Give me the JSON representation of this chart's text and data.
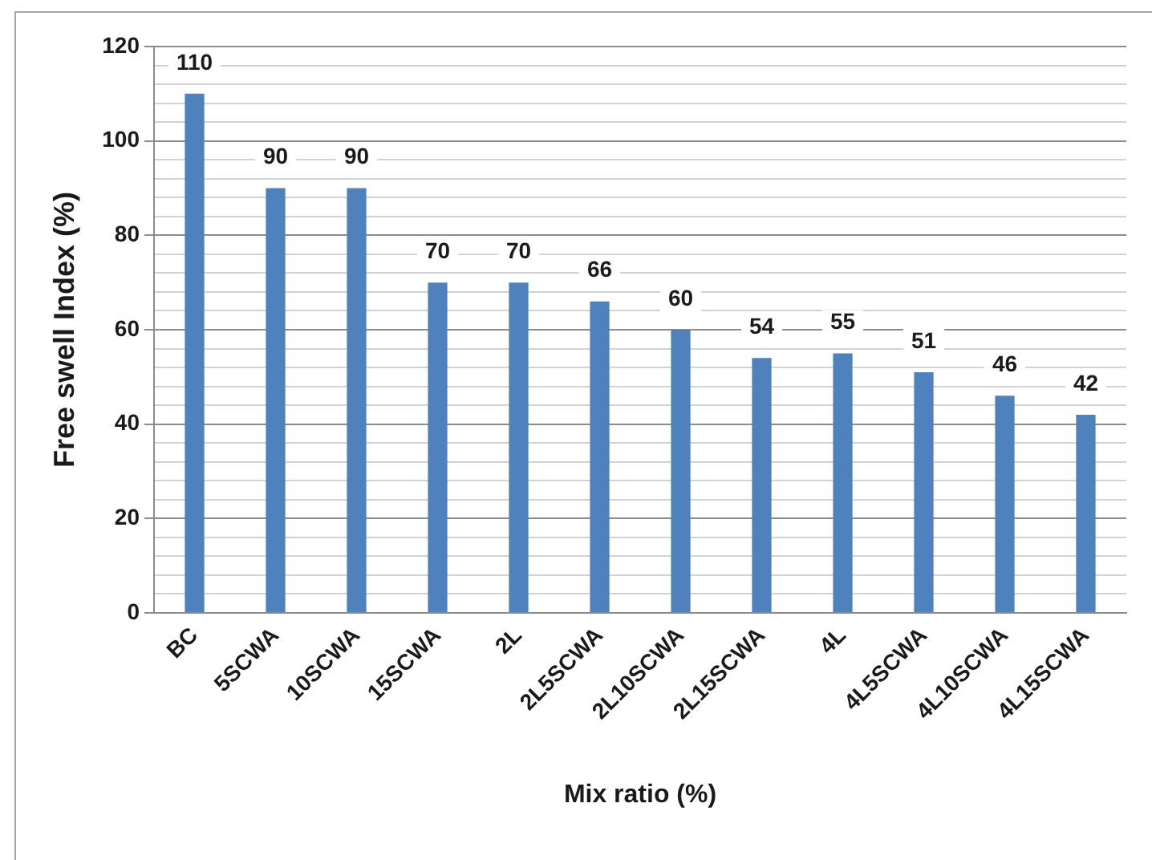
{
  "chart_data": {
    "type": "bar",
    "xlabel": "Mix ratio (%)",
    "ylabel": "Free swell Index (%)",
    "categories": [
      "BC",
      "5SCWA",
      "10SCWA",
      "15SCWA",
      "2L",
      "2L5SCWA",
      "2L10SCWA",
      "2L15SCWA",
      "4L",
      "4L5SCWA",
      "4L10SCWA",
      "4L15SCWA"
    ],
    "values": [
      110,
      90,
      90,
      70,
      70,
      66,
      60,
      54,
      55,
      51,
      46,
      42
    ],
    "color": "#4f81bd",
    "ylim": [
      0,
      120
    ],
    "yticks": [
      0,
      {
        "value": 4,
        "label": null
      },
      {
        "value": 8,
        "label": null
      },
      {
        "value": 12,
        "label": null
      },
      {
        "value": 16,
        "label": null
      },
      20,
      {
        "value": 24,
        "label": null
      },
      {
        "value": 28,
        "label": null
      },
      {
        "value": 32,
        "label": null
      },
      {
        "value": 36,
        "label": null
      },
      40,
      {
        "value": 44,
        "label": null
      },
      {
        "value": 48,
        "label": null
      },
      {
        "value": 52,
        "label": null
      },
      {
        "value": 56,
        "label": null
      },
      60,
      {
        "value": 64,
        "label": null
      },
      {
        "value": 68,
        "label": null
      },
      {
        "value": 72,
        "label": null
      },
      {
        "value": 76,
        "label": null
      },
      80,
      {
        "value": 84,
        "label": null
      },
      {
        "value": 88,
        "label": null
      },
      {
        "value": 92,
        "label": null
      },
      {
        "value": 96,
        "label": null
      },
      100,
      {
        "value": 104,
        "label": null
      },
      {
        "value": 108,
        "label": null
      },
      {
        "value": 112,
        "label": null
      },
      {
        "value": 116,
        "label": null
      },
      120
    ],
    "grid": "y",
    "data_labels": true
  }
}
